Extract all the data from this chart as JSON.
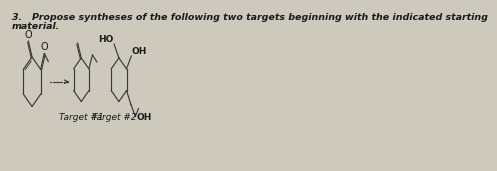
{
  "background_color": "#cdc9bc",
  "text_color": "#1a1a1a",
  "title_line1": "3.   Propose syntheses of the following two targets beginning with the indicated starting",
  "title_line2": "material.",
  "label1": "Target #1",
  "label2": "Target #2",
  "font_size_title": 6.8,
  "font_size_label": 6.5,
  "font_size_chem": 6.5,
  "line_width": 0.85
}
